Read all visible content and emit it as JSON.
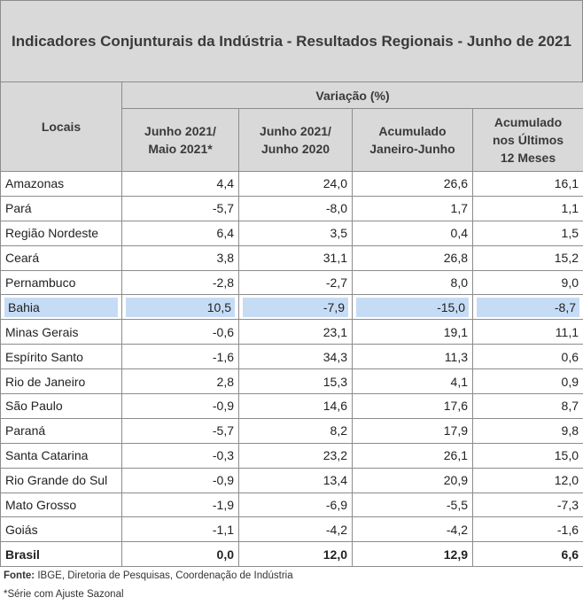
{
  "title": "Indicadores Conjunturais da Indústria - Resultados Regionais - Junho de 2021",
  "header": {
    "locais": "Locais",
    "group": "Variação (%)",
    "col1": [
      "Junho 2021/",
      "Maio 2021*"
    ],
    "col2": [
      "Junho 2021/",
      "Junho 2020"
    ],
    "col3": [
      "Acumulado",
      "Janeiro-Junho"
    ],
    "col4": [
      "Acumulado",
      "nos Últimos",
      "12 Meses"
    ]
  },
  "rows": [
    {
      "local": "Amazonas",
      "v": [
        "4,4",
        "24,0",
        "26,6",
        "16,1"
      ]
    },
    {
      "local": "Pará",
      "v": [
        "-5,7",
        "-8,0",
        "1,7",
        "1,1"
      ]
    },
    {
      "local": "Região Nordeste",
      "v": [
        "6,4",
        "3,5",
        "0,4",
        "1,5"
      ]
    },
    {
      "local": "Ceará",
      "v": [
        "3,8",
        "31,1",
        "26,8",
        "15,2"
      ]
    },
    {
      "local": "Pernambuco",
      "v": [
        "-2,8",
        "-2,7",
        "8,0",
        "9,0"
      ]
    },
    {
      "local": "Bahia",
      "v": [
        "10,5",
        "-7,9",
        "-15,0",
        "-8,7"
      ],
      "highlight": true
    },
    {
      "local": "Minas Gerais",
      "v": [
        "-0,6",
        "23,1",
        "19,1",
        "11,1"
      ]
    },
    {
      "local": "Espírito Santo",
      "v": [
        "-1,6",
        "34,3",
        "11,3",
        "0,6"
      ]
    },
    {
      "local": "Rio de Janeiro",
      "v": [
        "2,8",
        "15,3",
        "4,1",
        "0,9"
      ]
    },
    {
      "local": "São Paulo",
      "v": [
        "-0,9",
        "14,6",
        "17,6",
        "8,7"
      ]
    },
    {
      "local": "Paraná",
      "v": [
        "-5,7",
        "8,2",
        "17,9",
        "9,8"
      ]
    },
    {
      "local": "Santa Catarina",
      "v": [
        "-0,3",
        "23,2",
        "26,1",
        "15,0"
      ]
    },
    {
      "local": "Rio Grande do Sul",
      "v": [
        "-0,9",
        "13,4",
        "20,9",
        "12,0"
      ]
    },
    {
      "local": "Mato Grosso",
      "v": [
        "-1,9",
        "-6,9",
        "-5,5",
        "-7,3"
      ]
    },
    {
      "local": "Goiás",
      "v": [
        "-1,1",
        "-4,2",
        "-4,2",
        "-1,6"
      ]
    }
  ],
  "total": {
    "local": "Brasil",
    "v": [
      "0,0",
      "12,0",
      "12,9",
      "6,6"
    ]
  },
  "footer": {
    "fonte_label": "Fonte:",
    "fonte_text": " IBGE, Diretoria de Pesquisas, Coordenação de Indústria",
    "note": "*Série com Ajuste Sazonal"
  },
  "colors": {
    "header_bg": "#d9d9d9",
    "highlight": "#c6dcf5",
    "border": "#8c8c8c"
  }
}
